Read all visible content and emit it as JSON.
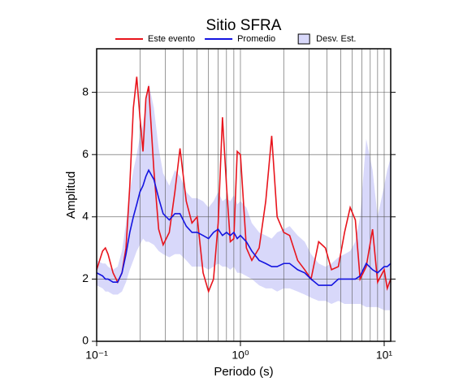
{
  "chart_data": {
    "type": "line",
    "title": "Sitio SFRA",
    "xlabel": "Periodo (s)",
    "ylabel": "Amplitud",
    "xscale": "log",
    "grid": true,
    "x": [
      0.1,
      0.11,
      0.115,
      0.12,
      0.13,
      0.14,
      0.15,
      0.16,
      0.17,
      0.18,
      0.19,
      0.2,
      0.21,
      0.22,
      0.23,
      0.25,
      0.27,
      0.29,
      0.32,
      0.35,
      0.38,
      0.42,
      0.46,
      0.5,
      0.55,
      0.6,
      0.65,
      0.7,
      0.75,
      0.8,
      0.85,
      0.9,
      0.95,
      1.0,
      1.1,
      1.2,
      1.35,
      1.5,
      1.65,
      1.8,
      2.0,
      2.2,
      2.5,
      2.8,
      3.1,
      3.5,
      3.9,
      4.3,
      4.8,
      5.3,
      5.8,
      6.3,
      6.8,
      7.5,
      8.3,
      9.0,
      10,
      10.5,
      11.1
    ],
    "series": [
      {
        "name": "Este evento",
        "color": "#e8141c",
        "values": [
          2.3,
          2.9,
          3.0,
          2.8,
          2.2,
          1.9,
          2.2,
          3.0,
          5.0,
          7.5,
          8.5,
          7.2,
          6.1,
          7.8,
          8.2,
          5.5,
          3.6,
          3.1,
          3.5,
          4.8,
          6.2,
          4.5,
          3.8,
          4.0,
          2.2,
          1.6,
          2.0,
          3.8,
          7.2,
          5.0,
          3.2,
          3.3,
          6.1,
          6.0,
          3.0,
          2.6,
          3.0,
          4.5,
          6.6,
          4.0,
          3.5,
          3.4,
          2.6,
          2.3,
          2.0,
          3.2,
          3.0,
          2.3,
          2.4,
          3.5,
          4.3,
          3.9,
          2.0,
          2.4,
          3.6,
          1.9,
          2.3,
          1.7,
          2.0
        ]
      },
      {
        "name": "Promedio",
        "color": "#1414e0",
        "values": [
          2.2,
          2.1,
          2.0,
          2.0,
          1.9,
          1.9,
          2.2,
          2.8,
          3.5,
          4.0,
          4.4,
          4.8,
          5.0,
          5.3,
          5.5,
          5.2,
          4.6,
          4.1,
          3.9,
          4.1,
          4.1,
          3.7,
          3.5,
          3.5,
          3.4,
          3.3,
          3.5,
          3.6,
          3.4,
          3.5,
          3.4,
          3.5,
          3.3,
          3.4,
          3.2,
          2.9,
          2.6,
          2.5,
          2.4,
          2.4,
          2.5,
          2.5,
          2.3,
          2.2,
          2.0,
          1.8,
          1.8,
          1.8,
          2.0,
          2.0,
          2.0,
          2.0,
          2.1,
          2.5,
          2.3,
          2.2,
          2.4,
          2.4,
          2.5
        ]
      }
    ],
    "band": {
      "name": "Desv. Est.",
      "color": "#d8d8fa",
      "lower": [
        1.8,
        1.7,
        1.6,
        1.6,
        1.5,
        1.5,
        1.6,
        1.9,
        2.3,
        2.6,
        2.9,
        3.1,
        3.3,
        3.2,
        3.2,
        3.1,
        2.9,
        2.8,
        2.7,
        2.8,
        2.8,
        2.6,
        2.4,
        2.4,
        2.4,
        2.3,
        2.4,
        2.5,
        2.4,
        2.4,
        2.3,
        2.4,
        2.2,
        2.2,
        2.1,
        2.0,
        1.8,
        1.7,
        1.7,
        1.6,
        1.7,
        1.7,
        1.6,
        1.5,
        1.4,
        1.3,
        1.3,
        1.2,
        1.3,
        1.2,
        1.2,
        1.2,
        1.2,
        1.1,
        1.1,
        1.1,
        1.0,
        1.0,
        1.0
      ],
      "upper": [
        2.6,
        2.5,
        2.5,
        2.4,
        2.3,
        2.4,
        2.9,
        3.8,
        4.8,
        5.5,
        6.0,
        6.6,
        7.0,
        7.6,
        8.3,
        7.5,
        6.2,
        5.4,
        5.0,
        5.5,
        5.3,
        4.8,
        4.6,
        4.6,
        4.5,
        4.3,
        4.5,
        4.8,
        4.5,
        4.6,
        4.5,
        4.7,
        4.4,
        4.5,
        4.3,
        3.8,
        3.5,
        3.4,
        3.3,
        3.5,
        3.6,
        3.7,
        3.4,
        3.2,
        2.8,
        2.5,
        2.4,
        2.5,
        2.7,
        2.8,
        2.9,
        3.2,
        4.0,
        6.5,
        5.5,
        4.0,
        5.0,
        5.5,
        5.9
      ]
    },
    "xlim": [
      0.1,
      11.1
    ],
    "ylim": [
      0,
      9.4
    ],
    "xticks": [
      {
        "value": 0.1,
        "label": "10⁻¹"
      },
      {
        "value": 1,
        "label": "10⁰"
      },
      {
        "value": 10,
        "label": "10¹"
      }
    ],
    "yticks": [
      0,
      2,
      4,
      6,
      8
    ]
  }
}
